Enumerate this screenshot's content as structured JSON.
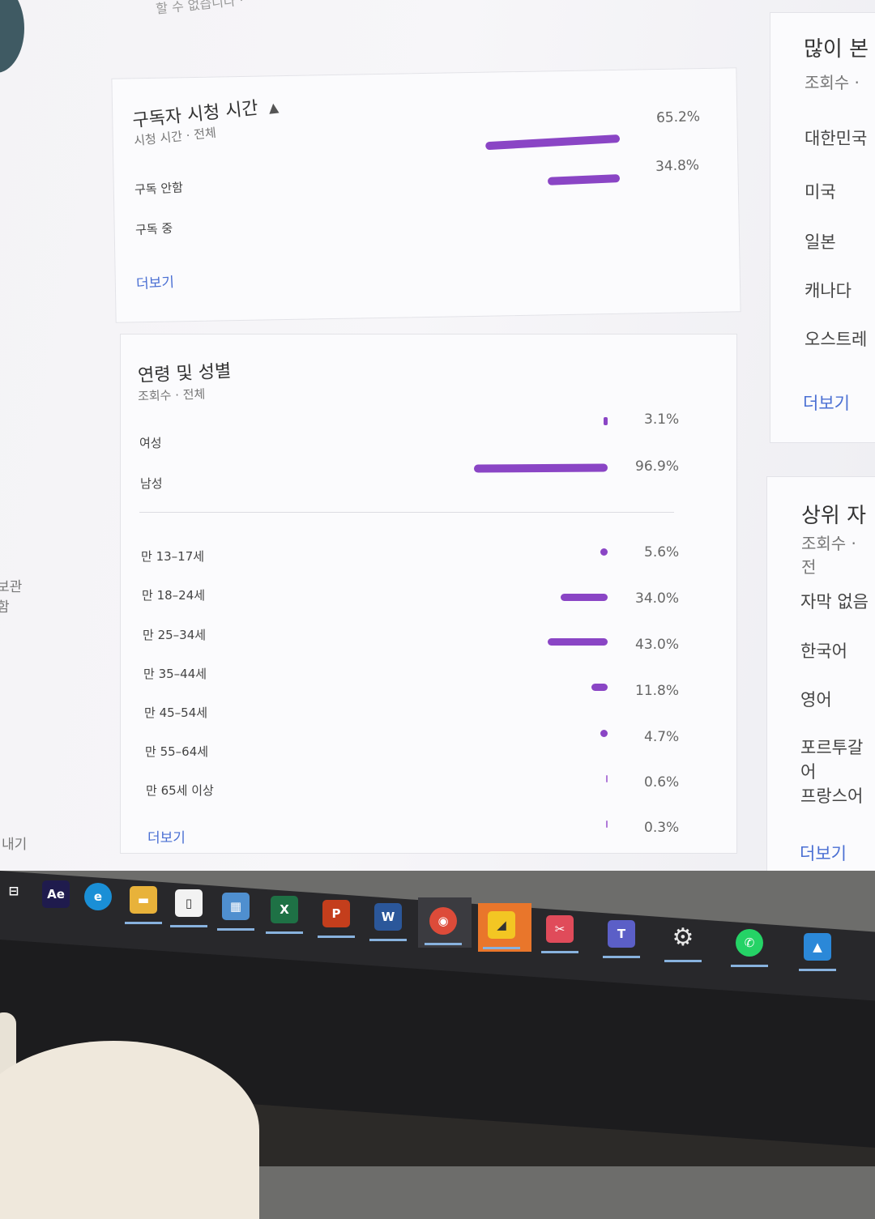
{
  "top_partial": "할 수 없습니다 ·",
  "sidebar": {
    "frag1": "보관함",
    "frag2": "내기"
  },
  "subscriber_watch": {
    "title": "구독자 시청 시간",
    "subtitle": "시청 시간 · 전체",
    "rows": [
      {
        "label": "구독 안함",
        "pct": "65.2%",
        "value": 65.2
      },
      {
        "label": "구독 중",
        "pct": "34.8%",
        "value": 34.8
      }
    ],
    "more": "더보기"
  },
  "age_gender": {
    "title": "연령 및 성별",
    "subtitle": "조회수 · 전체",
    "gender": [
      {
        "label": "여성",
        "pct": "3.1%",
        "value": 3.1
      },
      {
        "label": "남성",
        "pct": "96.9%",
        "value": 96.9
      }
    ],
    "ages": [
      {
        "label": "만 13–17세",
        "pct": "5.6%",
        "value": 5.6
      },
      {
        "label": "만 18–24세",
        "pct": "34.0%",
        "value": 34.0
      },
      {
        "label": "만 25–34세",
        "pct": "43.0%",
        "value": 43.0
      },
      {
        "label": "만 35–44세",
        "pct": "11.8%",
        "value": 11.8
      },
      {
        "label": "만 45–54세",
        "pct": "4.7%",
        "value": 4.7
      },
      {
        "label": "만 55–64세",
        "pct": "0.6%",
        "value": 0.6
      },
      {
        "label": "만 65세 이상",
        "pct": "0.3%",
        "value": 0.3
      }
    ],
    "more": "더보기"
  },
  "top_geo": {
    "title": "많이 본",
    "subtitle": "조회수 ·",
    "items": [
      "대한민국",
      "미국",
      "일본",
      "캐나다",
      "오스트레"
    ],
    "more": "더보기"
  },
  "top_subtitles": {
    "title": "상위 자",
    "subtitle": "조회수 · 전",
    "items": [
      "자막 없음",
      "한국어",
      "영어",
      "포르투갈어",
      "프랑스어"
    ],
    "more": "더보기"
  },
  "taskbar": {
    "icons": [
      {
        "name": "task-view-icon",
        "glyph": "⊟",
        "color": "#28282b"
      },
      {
        "name": "after-effects-icon",
        "glyph": "Ae",
        "color": "#1f1b4d"
      },
      {
        "name": "edge-icon",
        "glyph": "e",
        "color": "#1a8fd6"
      },
      {
        "name": "file-explorer-icon",
        "glyph": "▬",
        "color": "#e8b23a"
      },
      {
        "name": "document-icon",
        "glyph": "▯",
        "color": "#f2f2f2"
      },
      {
        "name": "photo-app-icon",
        "glyph": "▦",
        "color": "#4f8fcf"
      },
      {
        "name": "excel-icon",
        "glyph": "X",
        "color": "#1e7145"
      },
      {
        "name": "powerpoint-icon",
        "glyph": "P",
        "color": "#c43e1c"
      },
      {
        "name": "word-icon",
        "glyph": "W",
        "color": "#2b579a"
      },
      {
        "name": "chrome-icon",
        "glyph": "◉",
        "color": "#dd4b39"
      },
      {
        "name": "sticky-notes-icon",
        "glyph": "◢",
        "color": "#f3c623"
      },
      {
        "name": "snipping-tool-icon",
        "glyph": "✂",
        "color": "#e04b5a"
      },
      {
        "name": "teams-icon",
        "glyph": "T",
        "color": "#5b5fc7"
      },
      {
        "name": "settings-icon",
        "glyph": "⚙",
        "color": "#28282b"
      },
      {
        "name": "whatsapp-icon",
        "glyph": "✆",
        "color": "#25d366"
      },
      {
        "name": "photos-icon",
        "glyph": "▲",
        "color": "#2b88d8"
      }
    ]
  },
  "colors": {
    "bar": "#8a45c5",
    "link": "#4a6fd3"
  }
}
